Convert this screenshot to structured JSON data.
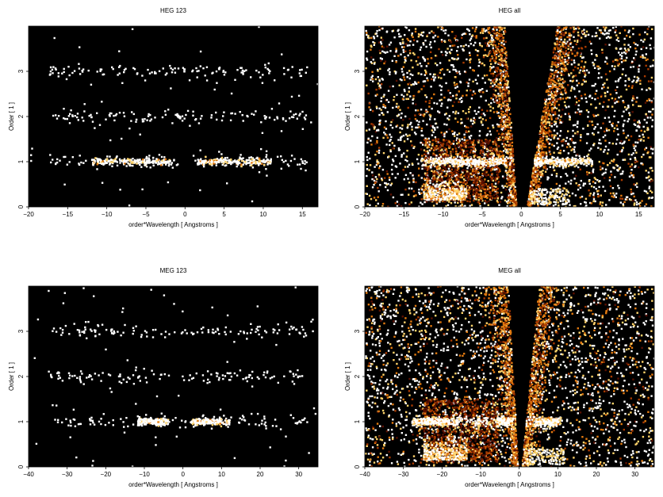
{
  "chart_data": [
    {
      "type": "heatmap",
      "title": "HEG 123",
      "xlabel": "order*Wavelength [ Angstroms ]",
      "ylabel": "Order [ 1 ]",
      "xlim": [
        -20,
        17
      ],
      "ylim": [
        0,
        4
      ],
      "xticks": [
        "−20",
        "−15",
        "−10",
        "−5",
        "0",
        "5",
        "10",
        "15"
      ],
      "yticks": [
        "0",
        "1",
        "2",
        "3"
      ],
      "color_map": [
        "#000000",
        "#5a1000",
        "#a83a00",
        "#e27a10",
        "#ffd36a",
        "#ffffff"
      ],
      "density": "sparse",
      "features": {
        "bands": [
          {
            "order": 1,
            "x_range": [
              -17.5,
              15.5
            ],
            "strong_ranges": [
              [
                -12,
                -2
              ],
              [
                1.5,
                11
              ]
            ]
          },
          {
            "order": 2,
            "x_range": [
              -17.5,
              15.5
            ],
            "strong_ranges": []
          },
          {
            "order": 3,
            "x_range": [
              -17.5,
              15.5
            ],
            "strong_ranges": []
          }
        ],
        "wedges": []
      }
    },
    {
      "type": "heatmap",
      "title": "HEG all",
      "xlabel": "order*Wavelength [ Angstroms ]",
      "ylabel": "Order [ 1 ]",
      "xlim": [
        -20,
        17
      ],
      "ylim": [
        0,
        4
      ],
      "xticks": [
        "−20",
        "−15",
        "−10",
        "−5",
        "0",
        "5",
        "10",
        "15"
      ],
      "yticks": [
        "0",
        "1",
        "2",
        "3"
      ],
      "color_map": [
        "#000000",
        "#5a1000",
        "#a83a00",
        "#e27a10",
        "#ffd36a",
        "#ffffff"
      ],
      "density": "dense",
      "features": {
        "bands": [
          {
            "order": 1,
            "x_range": [
              -13,
              9
            ],
            "strong_ranges": [
              [
                -12,
                -2
              ],
              [
                1.5,
                9
              ]
            ]
          }
        ],
        "wedges": [
          {
            "side": "negative",
            "x_at_order0": -0.7,
            "x_at_order4": -2.2
          },
          {
            "side": "positive",
            "x_at_order0": 0.6,
            "x_at_order4": 4.5
          }
        ]
      }
    },
    {
      "type": "heatmap",
      "title": "MEG 123",
      "xlabel": "order*Wavelength [ Angstroms ]",
      "ylabel": "Order [ 1 ]",
      "xlim": [
        -40,
        35
      ],
      "ylim": [
        0,
        4
      ],
      "xticks": [
        "−40",
        "−30",
        "−20",
        "−10",
        "0",
        "10",
        "20",
        "30"
      ],
      "yticks": [
        "0",
        "1",
        "2",
        "3"
      ],
      "color_map": [
        "#000000",
        "#5a1000",
        "#a83a00",
        "#e27a10",
        "#ffd36a",
        "#ffffff"
      ],
      "density": "sparse",
      "features": {
        "bands": [
          {
            "order": 1,
            "x_range": [
              -35,
              32
            ],
            "strong_ranges": [
              [
                -12,
                -4
              ],
              [
                2,
                12
              ]
            ]
          },
          {
            "order": 2,
            "x_range": [
              -35,
              32
            ],
            "strong_ranges": []
          },
          {
            "order": 3,
            "x_range": [
              -35,
              32
            ],
            "strong_ranges": []
          }
        ],
        "wedges": []
      }
    },
    {
      "type": "heatmap",
      "title": "MEG all",
      "xlabel": "order*Wavelength [ Angstroms ]",
      "ylabel": "Order [ 1 ]",
      "xlim": [
        -40,
        35
      ],
      "ylim": [
        0,
        4
      ],
      "xticks": [
        "−40",
        "−30",
        "−20",
        "−10",
        "0",
        "10",
        "20",
        "30"
      ],
      "yticks": [
        "0",
        "1",
        "2",
        "3"
      ],
      "color_map": [
        "#000000",
        "#5a1000",
        "#a83a00",
        "#e27a10",
        "#ffd36a",
        "#ffffff"
      ],
      "density": "dense",
      "features": {
        "bands": [
          {
            "order": 1,
            "x_range": [
              -28,
              11
            ],
            "strong_ranges": [
              [
                -28,
                -16
              ],
              [
                -6,
                -2
              ],
              [
                4,
                10
              ]
            ]
          }
        ],
        "wedges": [
          {
            "side": "negative",
            "x_at_order0": -0.5,
            "x_at_order4": -3
          },
          {
            "side": "positive",
            "x_at_order0": 0.5,
            "x_at_order4": 5
          }
        ]
      }
    }
  ]
}
